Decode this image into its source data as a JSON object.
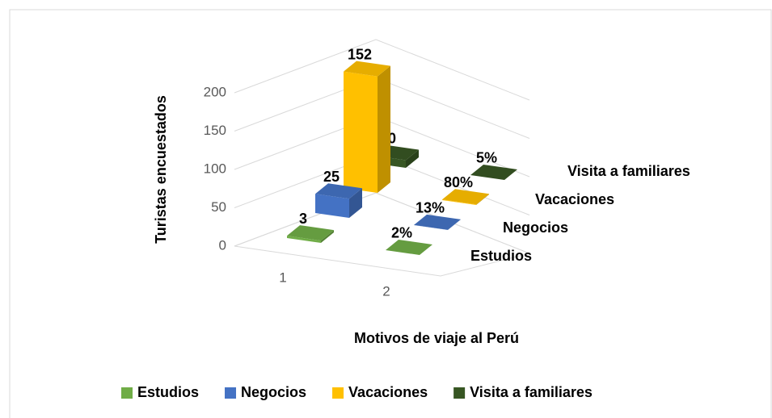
{
  "chart_data": {
    "type": "bar3d",
    "categories": [
      "1",
      "2"
    ],
    "series": [
      {
        "name": "Estudios",
        "color": "#70ad47",
        "values": [
          3,
          0.02
        ],
        "value_labels": [
          null,
          "2%"
        ]
      },
      {
        "name": "Negocios",
        "color": "#4472c4",
        "values": [
          25,
          0.13
        ],
        "value_labels": [
          null,
          "13%"
        ]
      },
      {
        "name": "Vacaciones",
        "color": "#ffc000",
        "values": [
          152,
          0.8
        ],
        "value_labels": [
          null,
          "80%"
        ]
      },
      {
        "name": "Visita a familiares",
        "color": "#375623",
        "values": [
          10,
          0.05
        ],
        "value_labels": [
          null,
          "5%"
        ]
      }
    ],
    "ylim": [
      0,
      200
    ],
    "yticks": [
      0,
      50,
      100,
      150,
      200
    ],
    "grid": true,
    "ylabel": "Turistas encuestados",
    "xlabel": "Motivos de viaje al Perú",
    "legend": "bottom"
  }
}
